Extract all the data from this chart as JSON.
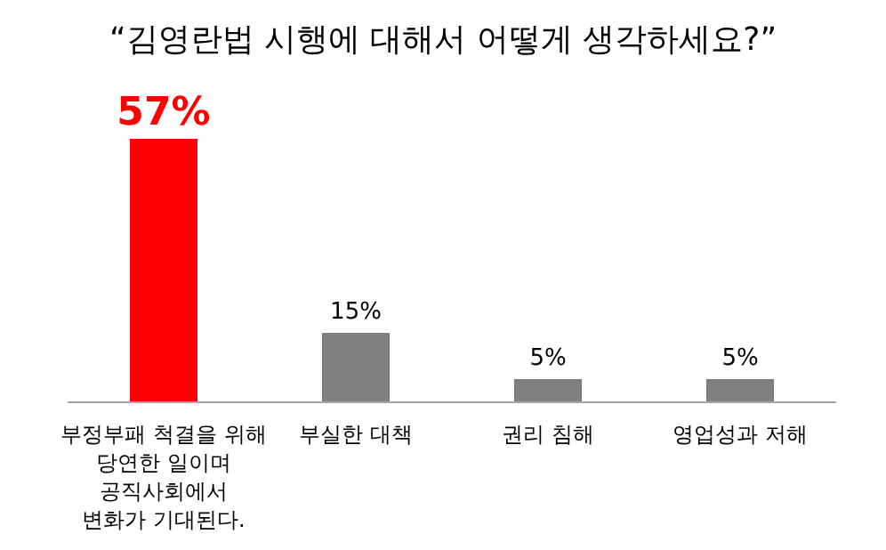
{
  "chart_data": {
    "type": "bar",
    "title": "“김영란법 시행에 대해서 어떻게 생각하세요?”",
    "categories": [
      "부정부패 척결을 위해\n당연한 일이며\n공직사회에서\n변화가 기대된다.",
      "부실한 대책",
      "권리 침해",
      "영업성과 저해"
    ],
    "values": [
      57,
      15,
      5,
      5
    ],
    "colors": [
      "#ff0000",
      "#7f7f7f",
      "#7f7f7f",
      "#7f7f7f"
    ],
    "value_labels": [
      "57%",
      "15%",
      "5%",
      "5%"
    ]
  }
}
